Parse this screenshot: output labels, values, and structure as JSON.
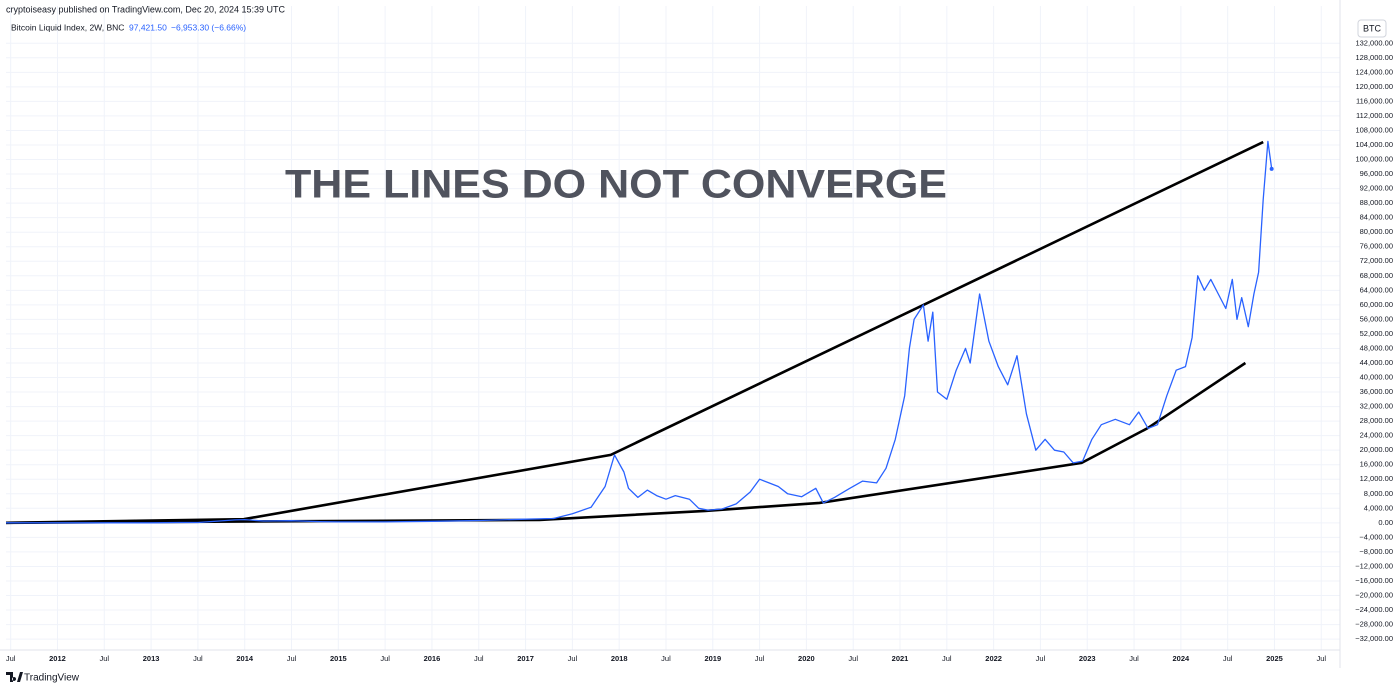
{
  "header": {
    "publisher": "cryptoiseasy published on TradingView.com, Dec 20, 2024 15:39 UTC",
    "symbol": "Bitcoin Liquid Index, 2W, BNC",
    "last": "97,421.50",
    "change": "−6,953.30 (−6.66%)",
    "badge": "BTC",
    "footer": "TradingView"
  },
  "chart_data": {
    "type": "line",
    "annotation": "THE LINES DO NOT CONVERGE",
    "grid": true,
    "xlim": [
      2011.45,
      2025.7
    ],
    "ylim": [
      -35000,
      134000
    ],
    "xticks": [
      {
        "value": 2011.5,
        "label": "Jul"
      },
      2012,
      {
        "value": 2012.5,
        "label": "Jul"
      },
      2013,
      {
        "value": 2013.5,
        "label": "Jul"
      },
      2014,
      {
        "value": 2014.5,
        "label": "Jul"
      },
      2015,
      {
        "value": 2015.5,
        "label": "Jul"
      },
      2016,
      {
        "value": 2016.5,
        "label": "Jul"
      },
      2017,
      {
        "value": 2017.5,
        "label": "Jul"
      },
      2018,
      {
        "value": 2018.5,
        "label": "Jul"
      },
      2019,
      {
        "value": 2019.5,
        "label": "Jul"
      },
      2020,
      {
        "value": 2020.5,
        "label": "Jul"
      },
      2021,
      {
        "value": 2021.5,
        "label": "Jul"
      },
      2022,
      {
        "value": 2022.5,
        "label": "Jul"
      },
      2023,
      {
        "value": 2023.5,
        "label": "Jul"
      },
      2024,
      {
        "value": 2024.5,
        "label": "Jul"
      },
      2025,
      {
        "value": 2025.5,
        "label": "Jul"
      }
    ],
    "yticks": [
      {
        "value": 132000,
        "label": "132,000.00"
      },
      {
        "value": 128000,
        "label": "128,000.00"
      },
      {
        "value": 124000,
        "label": "124,000.00"
      },
      {
        "value": 120000,
        "label": "120,000.00"
      },
      {
        "value": 116000,
        "label": "116,000.00"
      },
      {
        "value": 112000,
        "label": "112,000.00"
      },
      {
        "value": 108000,
        "label": "108,000.00"
      },
      {
        "value": 104000,
        "label": "104,000.00"
      },
      {
        "value": 100000,
        "label": "100,000.00"
      },
      {
        "value": 96000,
        "label": "96,000.00"
      },
      {
        "value": 92000,
        "label": "92,000.00"
      },
      {
        "value": 88000,
        "label": "88,000.00"
      },
      {
        "value": 84000,
        "label": "84,000.00"
      },
      {
        "value": 80000,
        "label": "80,000.00"
      },
      {
        "value": 76000,
        "label": "76,000.00"
      },
      {
        "value": 72000,
        "label": "72,000.00"
      },
      {
        "value": 68000,
        "label": "68,000.00"
      },
      {
        "value": 64000,
        "label": "64,000.00"
      },
      {
        "value": 60000,
        "label": "60,000.00"
      },
      {
        "value": 56000,
        "label": "56,000.00"
      },
      {
        "value": 52000,
        "label": "52,000.00"
      },
      {
        "value": 48000,
        "label": "48,000.00"
      },
      {
        "value": 44000,
        "label": "44,000.00"
      },
      {
        "value": 40000,
        "label": "40,000.00"
      },
      {
        "value": 36000,
        "label": "36,000.00"
      },
      {
        "value": 32000,
        "label": "32,000.00"
      },
      {
        "value": 28000,
        "label": "28,000.00"
      },
      {
        "value": 24000,
        "label": "24,000.00"
      },
      {
        "value": 20000,
        "label": "20,000.00"
      },
      {
        "value": 16000,
        "label": "16,000.00"
      },
      {
        "value": 12000,
        "label": "12,000.00"
      },
      {
        "value": 8000,
        "label": "8,000.00"
      },
      {
        "value": 4000,
        "label": "4,000.00"
      },
      {
        "value": 0,
        "label": "0.00"
      },
      {
        "value": -4000,
        "label": "−4,000.00"
      },
      {
        "value": -8000,
        "label": "−8,000.00"
      },
      {
        "value": -12000,
        "label": "−12,000.00"
      },
      {
        "value": -16000,
        "label": "−16,000.00"
      },
      {
        "value": -20000,
        "label": "−20,000.00"
      },
      {
        "value": -24000,
        "label": "−24,000.00"
      },
      {
        "value": -28000,
        "label": "−28,000.00"
      },
      {
        "value": -32000,
        "label": "−32,000.00"
      }
    ],
    "series": [
      {
        "name": "Bitcoin Liquid Index",
        "color": "#2962ff",
        "x": [
          2011.45,
          2012,
          2012.5,
          2013,
          2013.3,
          2013.5,
          2013.9,
          2014.0,
          2014.2,
          2014.5,
          2014.8,
          2015,
          2015.5,
          2016,
          2016.5,
          2017,
          2017.3,
          2017.5,
          2017.7,
          2017.85,
          2017.95,
          2018.05,
          2018.1,
          2018.2,
          2018.3,
          2018.4,
          2018.5,
          2018.6,
          2018.75,
          2018.85,
          2018.95,
          2019.1,
          2019.25,
          2019.4,
          2019.5,
          2019.6,
          2019.7,
          2019.8,
          2019.95,
          2020.1,
          2020.18,
          2020.3,
          2020.45,
          2020.6,
          2020.75,
          2020.85,
          2020.95,
          2021.05,
          2021.1,
          2021.15,
          2021.25,
          2021.3,
          2021.35,
          2021.4,
          2021.5,
          2021.6,
          2021.7,
          2021.75,
          2021.85,
          2021.95,
          2022.05,
          2022.15,
          2022.25,
          2022.35,
          2022.45,
          2022.55,
          2022.65,
          2022.75,
          2022.85,
          2022.95,
          2023.05,
          2023.15,
          2023.3,
          2023.45,
          2023.55,
          2023.65,
          2023.75,
          2023.85,
          2023.95,
          2024.05,
          2024.12,
          2024.18,
          2024.25,
          2024.32,
          2024.4,
          2024.48,
          2024.55,
          2024.6,
          2024.65,
          2024.72,
          2024.78,
          2024.83,
          2024.88,
          2024.93,
          2024.97
        ],
        "values": [
          3,
          5,
          7,
          13,
          100,
          90,
          800,
          900,
          500,
          600,
          350,
          250,
          250,
          430,
          650,
          1000,
          1200,
          2500,
          4300,
          10000,
          18700,
          14000,
          9500,
          7000,
          9000,
          7500,
          6500,
          7500,
          6500,
          4000,
          3500,
          3800,
          5200,
          8500,
          12000,
          11000,
          10000,
          8000,
          7200,
          9500,
          5500,
          7000,
          9300,
          11500,
          11000,
          15000,
          23000,
          35000,
          48000,
          56000,
          60000,
          50000,
          58000,
          36000,
          34000,
          42000,
          48000,
          44000,
          63000,
          50000,
          43000,
          38000,
          46000,
          30000,
          20000,
          23000,
          20000,
          19500,
          16500,
          17000,
          23000,
          27000,
          28500,
          27000,
          30500,
          26000,
          27000,
          35000,
          42000,
          43000,
          51000,
          68000,
          64000,
          67000,
          63000,
          59000,
          67000,
          56000,
          62000,
          54000,
          63000,
          69000,
          89000,
          105000,
          97421.5
        ]
      }
    ],
    "trend_lines": [
      {
        "color": "#000000",
        "x": [
          2011.45,
          2013.99,
          2017.91,
          2024.88
        ],
        "values": [
          0,
          1000,
          18700,
          104800
        ]
      },
      {
        "color": "#000000",
        "x": [
          2011.45,
          2017.15,
          2018.92,
          2020.14,
          2022.94,
          2023.64,
          2024.69
        ],
        "values": [
          0,
          800,
          3300,
          5500,
          16500,
          26000,
          44000
        ]
      }
    ]
  }
}
